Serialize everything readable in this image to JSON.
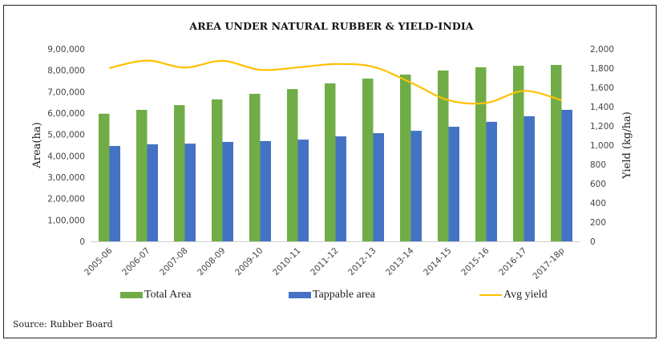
{
  "chart_data": {
    "type": "bar",
    "title": "AREA UNDER NATURAL RUBBER & YIELD-INDIA",
    "categories": [
      "2005-06",
      "2006-07",
      "2007-08",
      "2008-09",
      "2009-10",
      "2010-11",
      "2011-12",
      "2012-13",
      "2013-14",
      "2014-15",
      "2015-16",
      "2016-17",
      "2017-18p"
    ],
    "series": [
      {
        "name": "Total Area",
        "type": "bar",
        "axis": "left",
        "color": "#70AD47",
        "values": [
          597000,
          615000,
          637000,
          664000,
          690000,
          712000,
          739000,
          761000,
          780000,
          799000,
          814000,
          821000,
          825000
        ]
      },
      {
        "name": "Tappable area",
        "type": "bar",
        "axis": "left",
        "color": "#4472C4",
        "values": [
          446000,
          454000,
          457000,
          465000,
          469000,
          476000,
          491000,
          506000,
          517000,
          536000,
          559000,
          585000,
          615000
        ]
      },
      {
        "name": "Avg yield",
        "type": "line",
        "axis": "right",
        "color": "#FFC000",
        "values": [
          1802,
          1879,
          1806,
          1876,
          1783,
          1808,
          1843,
          1814,
          1650,
          1467,
          1439,
          1564,
          1467
        ]
      }
    ],
    "ylabel": "Area(ha)",
    "y2label": "Yield (kg/ha)",
    "ylim": [
      0,
      900000
    ],
    "y2lim": [
      0,
      2000
    ],
    "yticks": [
      "0",
      "1,00,000",
      "2,00,000",
      "3,00,000",
      "4,00,000",
      "5,00,000",
      "6,00,000",
      "7,00,000",
      "8,00,000",
      "9,00,000"
    ],
    "y2ticks": [
      "0",
      "200",
      "400",
      "600",
      "800",
      "1,000",
      "1,200",
      "1,400",
      "1,600",
      "1,800",
      "2,000"
    ],
    "grid": false,
    "legend_position": "bottom"
  },
  "source": "Source: Rubber Board"
}
